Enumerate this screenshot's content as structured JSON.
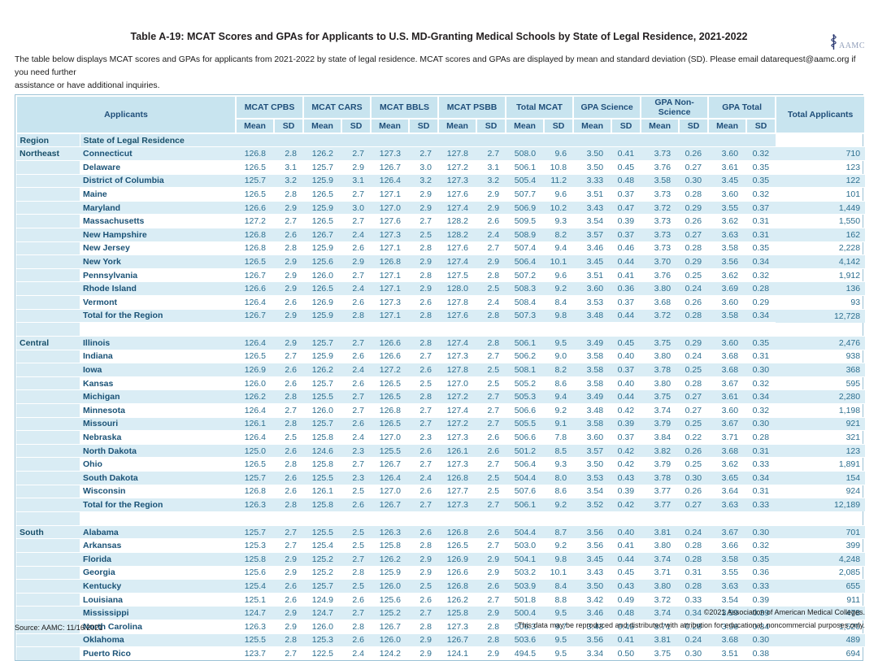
{
  "header": {
    "title": "Table A-19: MCAT Scores and GPAs for Applicants to U.S. MD-Granting Medical Schools by State of Legal Residence, 2021-2022",
    "logo_text": "AAMC",
    "intro_line1": "The table below displays MCAT scores and GPAs for applicants from 2021-2022 by state of legal residence. MCAT scores and GPAs are displayed by mean and standard deviation (SD). Please email datarequest@aamc.org if you need further",
    "intro_line2": "assistance or have additional inquiries."
  },
  "colors": {
    "header_bg": "#c8e4ef",
    "row_stripe": "#daedf5",
    "header_text": "#1f4e79",
    "number_text": "#2c6e8e",
    "label_text": "#1a5276",
    "table_border": "#9cc3d6"
  },
  "table": {
    "applicants_label": "Applicants",
    "groups": [
      "MCAT CPBS",
      "MCAT CARS",
      "MCAT BBLS",
      "MCAT PSBB",
      "Total MCAT",
      "GPA Science",
      "GPA Non-Science",
      "GPA Total"
    ],
    "mean_label": "Mean",
    "sd_label": "SD",
    "total_applicants_label": "Total Applicants",
    "region_label": "Region",
    "state_label": "State of Legal Residence",
    "regions": [
      {
        "name": "Northeast",
        "rows": [
          {
            "state": "Connecticut",
            "values": [
              "126.8",
              "2.8",
              "126.2",
              "2.7",
              "127.3",
              "2.7",
              "127.8",
              "2.7",
              "508.0",
              "9.6",
              "3.50",
              "0.41",
              "3.73",
              "0.26",
              "3.60",
              "0.32",
              "710"
            ]
          },
          {
            "state": "Delaware",
            "values": [
              "126.5",
              "3.1",
              "125.7",
              "2.9",
              "126.7",
              "3.0",
              "127.2",
              "3.1",
              "506.1",
              "10.8",
              "3.50",
              "0.45",
              "3.76",
              "0.27",
              "3.61",
              "0.35",
              "123"
            ]
          },
          {
            "state": "District of Columbia",
            "values": [
              "125.7",
              "3.2",
              "125.9",
              "3.1",
              "126.4",
              "3.2",
              "127.3",
              "3.2",
              "505.4",
              "11.2",
              "3.33",
              "0.48",
              "3.58",
              "0.30",
              "3.45",
              "0.35",
              "122"
            ]
          },
          {
            "state": "Maine",
            "values": [
              "126.5",
              "2.8",
              "126.5",
              "2.7",
              "127.1",
              "2.9",
              "127.6",
              "2.9",
              "507.7",
              "9.6",
              "3.51",
              "0.37",
              "3.73",
              "0.28",
              "3.60",
              "0.32",
              "101"
            ]
          },
          {
            "state": "Maryland",
            "values": [
              "126.6",
              "2.9",
              "125.9",
              "3.0",
              "127.0",
              "2.9",
              "127.4",
              "2.9",
              "506.9",
              "10.2",
              "3.43",
              "0.47",
              "3.72",
              "0.29",
              "3.55",
              "0.37",
              "1,449"
            ]
          },
          {
            "state": "Massachusetts",
            "values": [
              "127.2",
              "2.7",
              "126.5",
              "2.7",
              "127.6",
              "2.7",
              "128.2",
              "2.6",
              "509.5",
              "9.3",
              "3.54",
              "0.39",
              "3.73",
              "0.26",
              "3.62",
              "0.31",
              "1,550"
            ]
          },
          {
            "state": "New Hampshire",
            "values": [
              "126.8",
              "2.6",
              "126.7",
              "2.4",
              "127.3",
              "2.5",
              "128.2",
              "2.4",
              "508.9",
              "8.2",
              "3.57",
              "0.37",
              "3.73",
              "0.27",
              "3.63",
              "0.31",
              "162"
            ]
          },
          {
            "state": "New Jersey",
            "values": [
              "126.8",
              "2.8",
              "125.9",
              "2.6",
              "127.1",
              "2.8",
              "127.6",
              "2.7",
              "507.4",
              "9.4",
              "3.46",
              "0.46",
              "3.73",
              "0.28",
              "3.58",
              "0.35",
              "2,228"
            ]
          },
          {
            "state": "New York",
            "values": [
              "126.5",
              "2.9",
              "125.6",
              "2.9",
              "126.8",
              "2.9",
              "127.4",
              "2.9",
              "506.4",
              "10.1",
              "3.45",
              "0.44",
              "3.70",
              "0.29",
              "3.56",
              "0.34",
              "4,142"
            ]
          },
          {
            "state": "Pennsylvania",
            "values": [
              "126.7",
              "2.9",
              "126.0",
              "2.7",
              "127.1",
              "2.8",
              "127.5",
              "2.8",
              "507.2",
              "9.6",
              "3.51",
              "0.41",
              "3.76",
              "0.25",
              "3.62",
              "0.32",
              "1,912"
            ]
          },
          {
            "state": "Rhode Island",
            "values": [
              "126.6",
              "2.9",
              "126.5",
              "2.4",
              "127.1",
              "2.9",
              "128.0",
              "2.5",
              "508.3",
              "9.2",
              "3.60",
              "0.36",
              "3.80",
              "0.24",
              "3.69",
              "0.28",
              "136"
            ]
          },
          {
            "state": "Vermont",
            "values": [
              "126.4",
              "2.6",
              "126.9",
              "2.6",
              "127.3",
              "2.6",
              "127.8",
              "2.4",
              "508.4",
              "8.4",
              "3.53",
              "0.37",
              "3.68",
              "0.26",
              "3.60",
              "0.29",
              "93"
            ]
          },
          {
            "state": "Total for the Region",
            "values": [
              "126.7",
              "2.9",
              "125.9",
              "2.8",
              "127.1",
              "2.8",
              "127.6",
              "2.8",
              "507.3",
              "9.8",
              "3.48",
              "0.44",
              "3.72",
              "0.28",
              "3.58",
              "0.34",
              "12,728"
            ]
          }
        ]
      },
      {
        "name": "Central",
        "rows": [
          {
            "state": "Illinois",
            "values": [
              "126.4",
              "2.9",
              "125.7",
              "2.7",
              "126.6",
              "2.8",
              "127.4",
              "2.8",
              "506.1",
              "9.5",
              "3.49",
              "0.45",
              "3.75",
              "0.29",
              "3.60",
              "0.35",
              "2,476"
            ]
          },
          {
            "state": "Indiana",
            "values": [
              "126.5",
              "2.7",
              "125.9",
              "2.6",
              "126.6",
              "2.7",
              "127.3",
              "2.7",
              "506.2",
              "9.0",
              "3.58",
              "0.40",
              "3.80",
              "0.24",
              "3.68",
              "0.31",
              "938"
            ]
          },
          {
            "state": "Iowa",
            "values": [
              "126.9",
              "2.6",
              "126.2",
              "2.4",
              "127.2",
              "2.6",
              "127.8",
              "2.5",
              "508.1",
              "8.2",
              "3.58",
              "0.37",
              "3.78",
              "0.25",
              "3.68",
              "0.30",
              "368"
            ]
          },
          {
            "state": "Kansas",
            "values": [
              "126.0",
              "2.6",
              "125.7",
              "2.6",
              "126.5",
              "2.5",
              "127.0",
              "2.5",
              "505.2",
              "8.6",
              "3.58",
              "0.40",
              "3.80",
              "0.28",
              "3.67",
              "0.32",
              "595"
            ]
          },
          {
            "state": "Michigan",
            "values": [
              "126.2",
              "2.8",
              "125.5",
              "2.7",
              "126.5",
              "2.8",
              "127.2",
              "2.7",
              "505.3",
              "9.4",
              "3.49",
              "0.44",
              "3.75",
              "0.27",
              "3.61",
              "0.34",
              "2,280"
            ]
          },
          {
            "state": "Minnesota",
            "values": [
              "126.4",
              "2.7",
              "126.0",
              "2.7",
              "126.8",
              "2.7",
              "127.4",
              "2.7",
              "506.6",
              "9.2",
              "3.48",
              "0.42",
              "3.74",
              "0.27",
              "3.60",
              "0.32",
              "1,198"
            ]
          },
          {
            "state": "Missouri",
            "values": [
              "126.1",
              "2.8",
              "125.7",
              "2.6",
              "126.5",
              "2.7",
              "127.2",
              "2.7",
              "505.5",
              "9.1",
              "3.58",
              "0.39",
              "3.79",
              "0.25",
              "3.67",
              "0.30",
              "921"
            ]
          },
          {
            "state": "Nebraska",
            "values": [
              "126.4",
              "2.5",
              "125.8",
              "2.4",
              "127.0",
              "2.3",
              "127.3",
              "2.6",
              "506.6",
              "7.8",
              "3.60",
              "0.37",
              "3.84",
              "0.22",
              "3.71",
              "0.28",
              "321"
            ]
          },
          {
            "state": "North Dakota",
            "values": [
              "125.0",
              "2.6",
              "124.6",
              "2.3",
              "125.5",
              "2.6",
              "126.1",
              "2.6",
              "501.2",
              "8.5",
              "3.57",
              "0.42",
              "3.82",
              "0.26",
              "3.68",
              "0.31",
              "123"
            ]
          },
          {
            "state": "Ohio",
            "values": [
              "126.5",
              "2.8",
              "125.8",
              "2.7",
              "126.7",
              "2.7",
              "127.3",
              "2.7",
              "506.4",
              "9.3",
              "3.50",
              "0.42",
              "3.79",
              "0.25",
              "3.62",
              "0.33",
              "1,891"
            ]
          },
          {
            "state": "South Dakota",
            "values": [
              "125.7",
              "2.6",
              "125.5",
              "2.3",
              "126.4",
              "2.4",
              "126.8",
              "2.5",
              "504.4",
              "8.0",
              "3.53",
              "0.43",
              "3.78",
              "0.30",
              "3.65",
              "0.34",
              "154"
            ]
          },
          {
            "state": "Wisconsin",
            "values": [
              "126.8",
              "2.6",
              "126.1",
              "2.5",
              "127.0",
              "2.6",
              "127.7",
              "2.5",
              "507.6",
              "8.6",
              "3.54",
              "0.39",
              "3.77",
              "0.26",
              "3.64",
              "0.31",
              "924"
            ]
          },
          {
            "state": "Total for the Region",
            "values": [
              "126.3",
              "2.8",
              "125.8",
              "2.6",
              "126.7",
              "2.7",
              "127.3",
              "2.7",
              "506.1",
              "9.2",
              "3.52",
              "0.42",
              "3.77",
              "0.27",
              "3.63",
              "0.33",
              "12,189"
            ]
          }
        ]
      },
      {
        "name": "South",
        "rows": [
          {
            "state": "Alabama",
            "values": [
              "125.7",
              "2.7",
              "125.5",
              "2.5",
              "126.3",
              "2.6",
              "126.8",
              "2.6",
              "504.4",
              "8.7",
              "3.56",
              "0.40",
              "3.81",
              "0.24",
              "3.67",
              "0.30",
              "701"
            ]
          },
          {
            "state": "Arkansas",
            "values": [
              "125.3",
              "2.7",
              "125.4",
              "2.5",
              "125.8",
              "2.8",
              "126.5",
              "2.7",
              "503.0",
              "9.2",
              "3.56",
              "0.41",
              "3.80",
              "0.28",
              "3.66",
              "0.32",
              "399"
            ]
          },
          {
            "state": "Florida",
            "values": [
              "125.8",
              "2.9",
              "125.2",
              "2.7",
              "126.2",
              "2.9",
              "126.9",
              "2.9",
              "504.1",
              "9.8",
              "3.45",
              "0.44",
              "3.74",
              "0.28",
              "3.58",
              "0.35",
              "4,248"
            ]
          },
          {
            "state": "Georgia",
            "values": [
              "125.6",
              "2.9",
              "125.2",
              "2.8",
              "125.9",
              "2.9",
              "126.6",
              "2.9",
              "503.2",
              "10.1",
              "3.43",
              "0.45",
              "3.71",
              "0.31",
              "3.55",
              "0.36",
              "2,085"
            ]
          },
          {
            "state": "Kentucky",
            "values": [
              "125.4",
              "2.6",
              "125.7",
              "2.5",
              "126.0",
              "2.5",
              "126.8",
              "2.6",
              "503.9",
              "8.4",
              "3.50",
              "0.43",
              "3.80",
              "0.28",
              "3.63",
              "0.33",
              "655"
            ]
          },
          {
            "state": "Louisiana",
            "values": [
              "125.1",
              "2.6",
              "124.9",
              "2.6",
              "125.6",
              "2.6",
              "126.2",
              "2.7",
              "501.8",
              "8.8",
              "3.42",
              "0.49",
              "3.72",
              "0.33",
              "3.54",
              "0.39",
              "911"
            ]
          },
          {
            "state": "Mississippi",
            "values": [
              "124.7",
              "2.9",
              "124.7",
              "2.7",
              "125.2",
              "2.7",
              "125.8",
              "2.9",
              "500.4",
              "9.5",
              "3.46",
              "0.48",
              "3.74",
              "0.34",
              "3.59",
              "0.39",
              "478"
            ]
          },
          {
            "state": "North Carolina",
            "values": [
              "126.3",
              "2.9",
              "126.0",
              "2.8",
              "126.7",
              "2.8",
              "127.3",
              "2.8",
              "506.3",
              "9.7",
              "3.43",
              "0.45",
              "3.71",
              "0.28",
              "3.56",
              "0.34",
              "1,520"
            ]
          },
          {
            "state": "Oklahoma",
            "values": [
              "125.5",
              "2.8",
              "125.3",
              "2.6",
              "126.0",
              "2.9",
              "126.7",
              "2.8",
              "503.6",
              "9.5",
              "3.56",
              "0.41",
              "3.81",
              "0.24",
              "3.68",
              "0.30",
              "489"
            ]
          },
          {
            "state": "Puerto Rico",
            "values": [
              "123.7",
              "2.7",
              "122.5",
              "2.4",
              "124.2",
              "2.9",
              "124.1",
              "2.9",
              "494.5",
              "9.5",
              "3.34",
              "0.50",
              "3.75",
              "0.30",
              "3.51",
              "0.38",
              "694"
            ]
          }
        ]
      }
    ]
  },
  "footer": {
    "source": "Source: AAMC: 11/16/2021",
    "copyright": "©2021 Association of American Medical Colleges.",
    "license": "This data may be reproduced and distributed with attribution for educational, noncommercial purposes only."
  }
}
